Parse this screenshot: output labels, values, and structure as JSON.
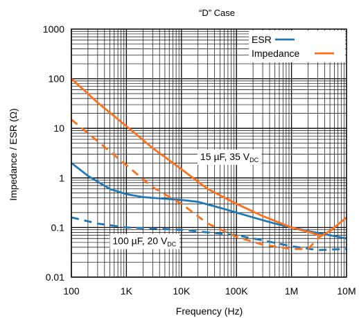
{
  "chart_data": {
    "type": "line",
    "title": "“D” Case",
    "xlabel": "Frequency (Hz)",
    "ylabel": "Impedance / ESR (Ω)",
    "x_scale": "log",
    "y_scale": "log",
    "xlim": [
      100,
      10000000
    ],
    "ylim": [
      0.01,
      1000
    ],
    "grid": true,
    "legend_position": "top-right",
    "x_ticks": [
      {
        "value": 100,
        "label": "100"
      },
      {
        "value": 1000,
        "label": "1K"
      },
      {
        "value": 10000,
        "label": "10K"
      },
      {
        "value": 100000,
        "label": "100K"
      },
      {
        "value": 1000000,
        "label": "1M"
      },
      {
        "value": 10000000,
        "label": "10M"
      }
    ],
    "y_ticks": [
      {
        "value": 0.01,
        "label": "0.01"
      },
      {
        "value": 0.1,
        "label": "0.1"
      },
      {
        "value": 1,
        "label": "1"
      },
      {
        "value": 10,
        "label": "10"
      },
      {
        "value": 100,
        "label": "100"
      },
      {
        "value": 1000,
        "label": "1000"
      }
    ],
    "legend": [
      {
        "name": "ESR",
        "color": "#1f77b4"
      },
      {
        "name": "Impedance",
        "color": "#ff6f1a"
      }
    ],
    "annotations": [
      {
        "text": "15 µF, 35 V",
        "sub": "DC",
        "x": 22000,
        "y": 2.3
      },
      {
        "text": "100 µF, 20 V",
        "sub": "DC",
        "x": 560,
        "y": 0.046
      }
    ],
    "series": [
      {
        "name": "ESR",
        "capacitor": "15 µF, 35 V",
        "style": "solid",
        "color": "#1f77b4",
        "points": [
          [
            100,
            2.0
          ],
          [
            200,
            1.1
          ],
          [
            500,
            0.6
          ],
          [
            1000,
            0.47
          ],
          [
            2000,
            0.41
          ],
          [
            5000,
            0.38
          ],
          [
            10000,
            0.36
          ],
          [
            20000,
            0.33
          ],
          [
            50000,
            0.25
          ],
          [
            100000,
            0.2
          ],
          [
            200000,
            0.16
          ],
          [
            500000,
            0.12
          ],
          [
            1000000,
            0.1
          ],
          [
            2000000,
            0.085
          ],
          [
            5000000,
            0.07
          ],
          [
            10000000,
            0.06
          ]
        ]
      },
      {
        "name": "Impedance",
        "capacitor": "15 µF, 35 V",
        "style": "solid",
        "color": "#ff6f1a",
        "points": [
          [
            100,
            100
          ],
          [
            300,
            33
          ],
          [
            1000,
            11
          ],
          [
            3000,
            4
          ],
          [
            10000,
            1.5
          ],
          [
            30000,
            0.6
          ],
          [
            100000,
            0.3
          ],
          [
            300000,
            0.17
          ],
          [
            1000000,
            0.1
          ],
          [
            2000000,
            0.082
          ],
          [
            3500000,
            0.068
          ],
          [
            5000000,
            0.085
          ],
          [
            10000000,
            0.16
          ]
        ]
      },
      {
        "name": "ESR",
        "capacitor": "100 µF, 20 V",
        "style": "dashed",
        "color": "#1f77b4",
        "points": [
          [
            100,
            0.16
          ],
          [
            300,
            0.12
          ],
          [
            1000,
            0.1
          ],
          [
            10000,
            0.09
          ],
          [
            100000,
            0.07
          ],
          [
            300000,
            0.055
          ],
          [
            1000000,
            0.042
          ],
          [
            3000000,
            0.035
          ],
          [
            10000000,
            0.037
          ]
        ]
      },
      {
        "name": "Impedance",
        "capacitor": "100 µF, 20 V",
        "style": "dashed",
        "color": "#ff6f1a",
        "points": [
          [
            100,
            15
          ],
          [
            300,
            5.5
          ],
          [
            1000,
            1.8
          ],
          [
            3000,
            0.65
          ],
          [
            10000,
            0.3
          ],
          [
            30000,
            0.12
          ],
          [
            100000,
            0.065
          ],
          [
            300000,
            0.045
          ],
          [
            1000000,
            0.037
          ],
          [
            2000000,
            0.037
          ],
          [
            3500000,
            0.07
          ]
        ]
      }
    ]
  }
}
